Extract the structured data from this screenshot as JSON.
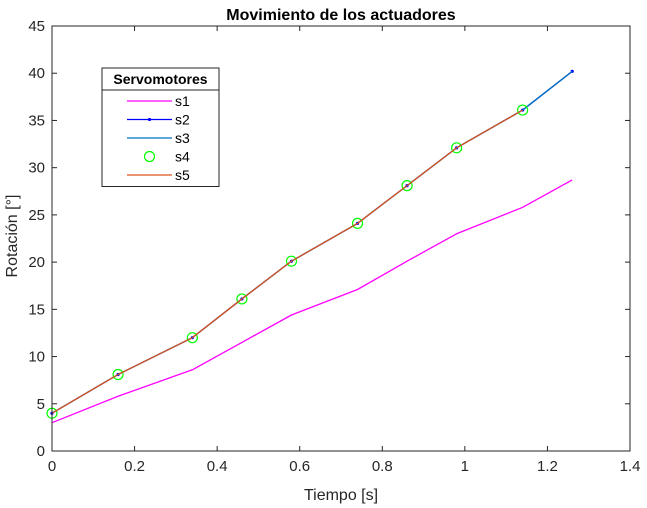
{
  "chart_data": {
    "type": "line",
    "title": "Movimiento de los actuadores",
    "xlabel": "Tiempo [s]",
    "ylabel": "Rotación [°]",
    "xlim": [
      0,
      1.4
    ],
    "ylim": [
      0,
      45
    ],
    "xticks": [
      0,
      0.2,
      0.4,
      0.6,
      0.8,
      1.0,
      1.2,
      1.4
    ],
    "xtick_labels": [
      "0",
      "0.2",
      "0.4",
      "0.6",
      "0.8",
      "1",
      "1.2",
      "1.4"
    ],
    "yticks": [
      0,
      5,
      10,
      15,
      20,
      25,
      30,
      35,
      40,
      45
    ],
    "ytick_labels": [
      "0",
      "5",
      "10",
      "15",
      "20",
      "25",
      "30",
      "35",
      "40",
      "45"
    ],
    "grid": false,
    "legend": {
      "title": "Servomotores",
      "placement": "top-left"
    },
    "series": [
      {
        "name": "s1",
        "color": "#ff00ff",
        "marker": "none",
        "style": "line",
        "x": [
          0,
          0.16,
          0.34,
          0.46,
          0.58,
          0.74,
          0.86,
          0.98,
          1.14,
          1.26
        ],
        "y": [
          3,
          5.8,
          8.6,
          11.5,
          14.4,
          17.1,
          20.1,
          23.0,
          25.8,
          28.7
        ]
      },
      {
        "name": "s2",
        "color": "#0000ff",
        "marker": "dot",
        "style": "line",
        "x": [
          0,
          0.16,
          0.34,
          0.46,
          0.58,
          0.74,
          0.86,
          0.98,
          1.14,
          1.26
        ],
        "y": [
          4,
          8.1,
          12.0,
          16.1,
          20.1,
          24.1,
          28.1,
          32.1,
          36.1,
          40.2
        ]
      },
      {
        "name": "s3",
        "color": "#0072bd",
        "marker": "none",
        "style": "line",
        "x": [
          0,
          0.16,
          0.34,
          0.46,
          0.58,
          0.74,
          0.86,
          0.98,
          1.14,
          1.26
        ],
        "y": [
          4,
          8.1,
          12.0,
          16.1,
          20.1,
          24.1,
          28.1,
          32.1,
          36.1,
          40.2
        ]
      },
      {
        "name": "s4",
        "color": "#00ff00",
        "marker": "circle",
        "style": "none",
        "x": [
          0,
          0.16,
          0.34,
          0.46,
          0.58,
          0.74,
          0.86,
          0.98,
          1.14
        ],
        "y": [
          4,
          8.1,
          12.0,
          16.1,
          20.1,
          24.1,
          28.1,
          32.1,
          36.1
        ]
      },
      {
        "name": "s5",
        "color": "#d95319",
        "marker": "none",
        "style": "line",
        "x": [
          0,
          0.16,
          0.34,
          0.46,
          0.58,
          0.74,
          0.86,
          0.98,
          1.14
        ],
        "y": [
          4,
          8.1,
          12.0,
          16.1,
          20.1,
          24.1,
          28.1,
          32.1,
          36.1
        ]
      }
    ]
  }
}
